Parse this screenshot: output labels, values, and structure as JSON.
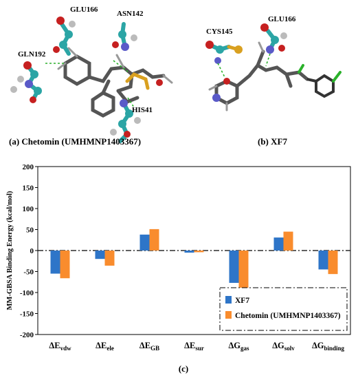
{
  "panel_a": {
    "labels": {
      "glu166": "GLU166",
      "asn142": "ASN142",
      "gln192": "GLN192",
      "his41": "HIS41"
    },
    "caption": "(a) Chetomin (UMHMNP1403367)"
  },
  "panel_b": {
    "labels": {
      "cys145": "CYS145",
      "glu166": "GLU166"
    },
    "caption": "(b) XF7"
  },
  "chart_caption": "(c)",
  "colors": {
    "xf7": "#2E75C8",
    "chetomin": "#F98C2D"
  },
  "chart_data": {
    "type": "bar",
    "ylabel": "MM-GBSA Binding Energy (kcal/mol)",
    "ylim": [
      -200,
      200
    ],
    "yticks": [
      -200,
      -150,
      -100,
      -50,
      0,
      50,
      100,
      150,
      200
    ],
    "categories": [
      {
        "main": "ΔE",
        "sub": "vdw"
      },
      {
        "main": "ΔE",
        "sub": "ele"
      },
      {
        "main": "ΔE",
        "sub": "GB"
      },
      {
        "main": "ΔE",
        "sub": "sur"
      },
      {
        "main": "ΔG",
        "sub": "gas"
      },
      {
        "main": "ΔG",
        "sub": "solv"
      },
      {
        "main": "ΔG",
        "sub": "binding"
      }
    ],
    "series": [
      {
        "name": "XF7",
        "values": [
          -55,
          -20,
          38,
          -5,
          -77,
          31,
          -45
        ]
      },
      {
        "name": "Chetomin (UMHMNP1403367)",
        "values": [
          -66,
          -36,
          51,
          -4,
          -102,
          45,
          -56
        ]
      }
    ],
    "legend_position": "bottom-right",
    "zero_line": "dash-dot"
  }
}
